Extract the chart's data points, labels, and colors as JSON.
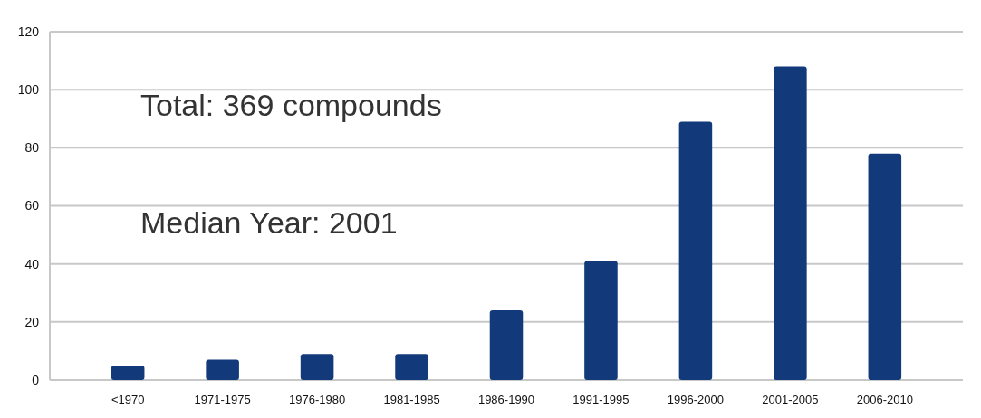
{
  "chart_data": {
    "type": "bar",
    "categories": [
      "<1970",
      "1971-1975",
      "1976-1980",
      "1981-1985",
      "1986-1990",
      "1991-1995",
      "1996-2000",
      "2001-2005",
      "2006-2010"
    ],
    "values": [
      5,
      7,
      9,
      9,
      24,
      41,
      89,
      108,
      78
    ],
    "color": "#12397a",
    "ylim": [
      0,
      120
    ],
    "yticks": [
      0,
      20,
      40,
      60,
      80,
      100,
      120
    ],
    "grid": "y",
    "annotations": [
      "Total: 369 compounds",
      "Median Year: 2001"
    ]
  }
}
